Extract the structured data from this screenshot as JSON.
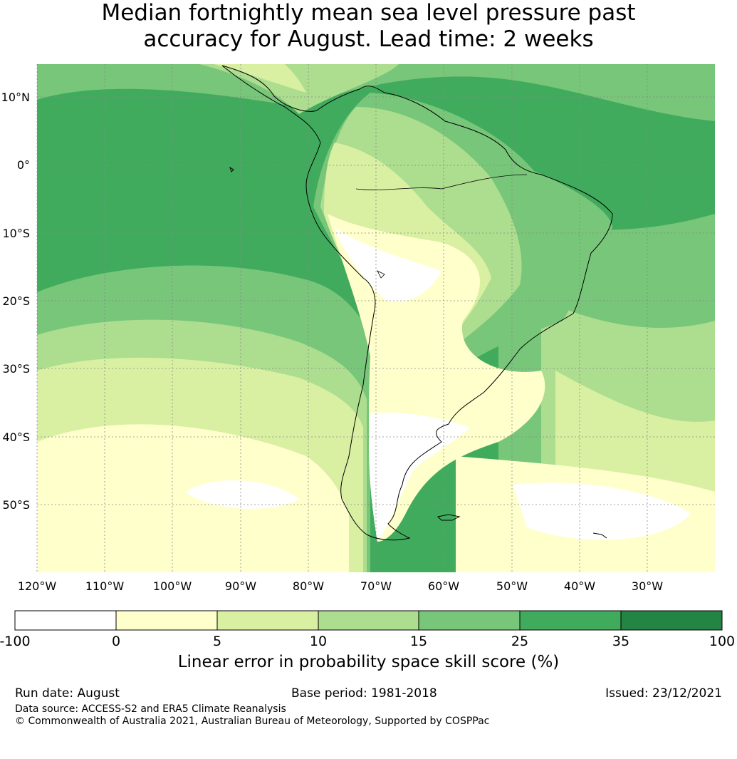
{
  "title_line1": "Median fortnightly mean sea level pressure past",
  "title_line2": "accuracy for August. Lead time: 2 weeks",
  "map": {
    "lon_ticks": [
      "120°W",
      "110°W",
      "100°W",
      "90°W",
      "80°W",
      "70°W",
      "60°W",
      "50°W",
      "40°W",
      "30°W"
    ],
    "lat_ticks": [
      "10°N",
      "0°",
      "10°S",
      "20°S",
      "30°S",
      "40°S",
      "50°S"
    ],
    "lon_range": [
      -120,
      -20
    ],
    "lat_range": [
      -60,
      15
    ],
    "colors": {
      "neg": "#ffffff",
      "c0_5": "#ffffcc",
      "c5_10": "#d9f0a3",
      "c10_15": "#addd8e",
      "c15_25": "#78c679",
      "c25_35": "#41ab5d",
      "c35_100": "#238443"
    }
  },
  "colorbar": {
    "boundaries": [
      "-100",
      "0",
      "5",
      "10",
      "15",
      "25",
      "35",
      "100"
    ],
    "colors": [
      "#ffffff",
      "#ffffcc",
      "#d9f0a3",
      "#addd8e",
      "#78c679",
      "#41ab5d",
      "#238443"
    ],
    "label": "Linear error in probability space skill score (%)"
  },
  "footer": {
    "run_date": "Run date: August",
    "base_period": "Base period: 1981-2018",
    "issued": "Issued: 23/12/2021",
    "data_source": "Data source: ACCESS-S2 and ERA5 Climate Reanalysis",
    "copyright": "© Commonwealth of Australia 2021, Australian Bureau of Meteorology, Supported by COSPPac"
  }
}
